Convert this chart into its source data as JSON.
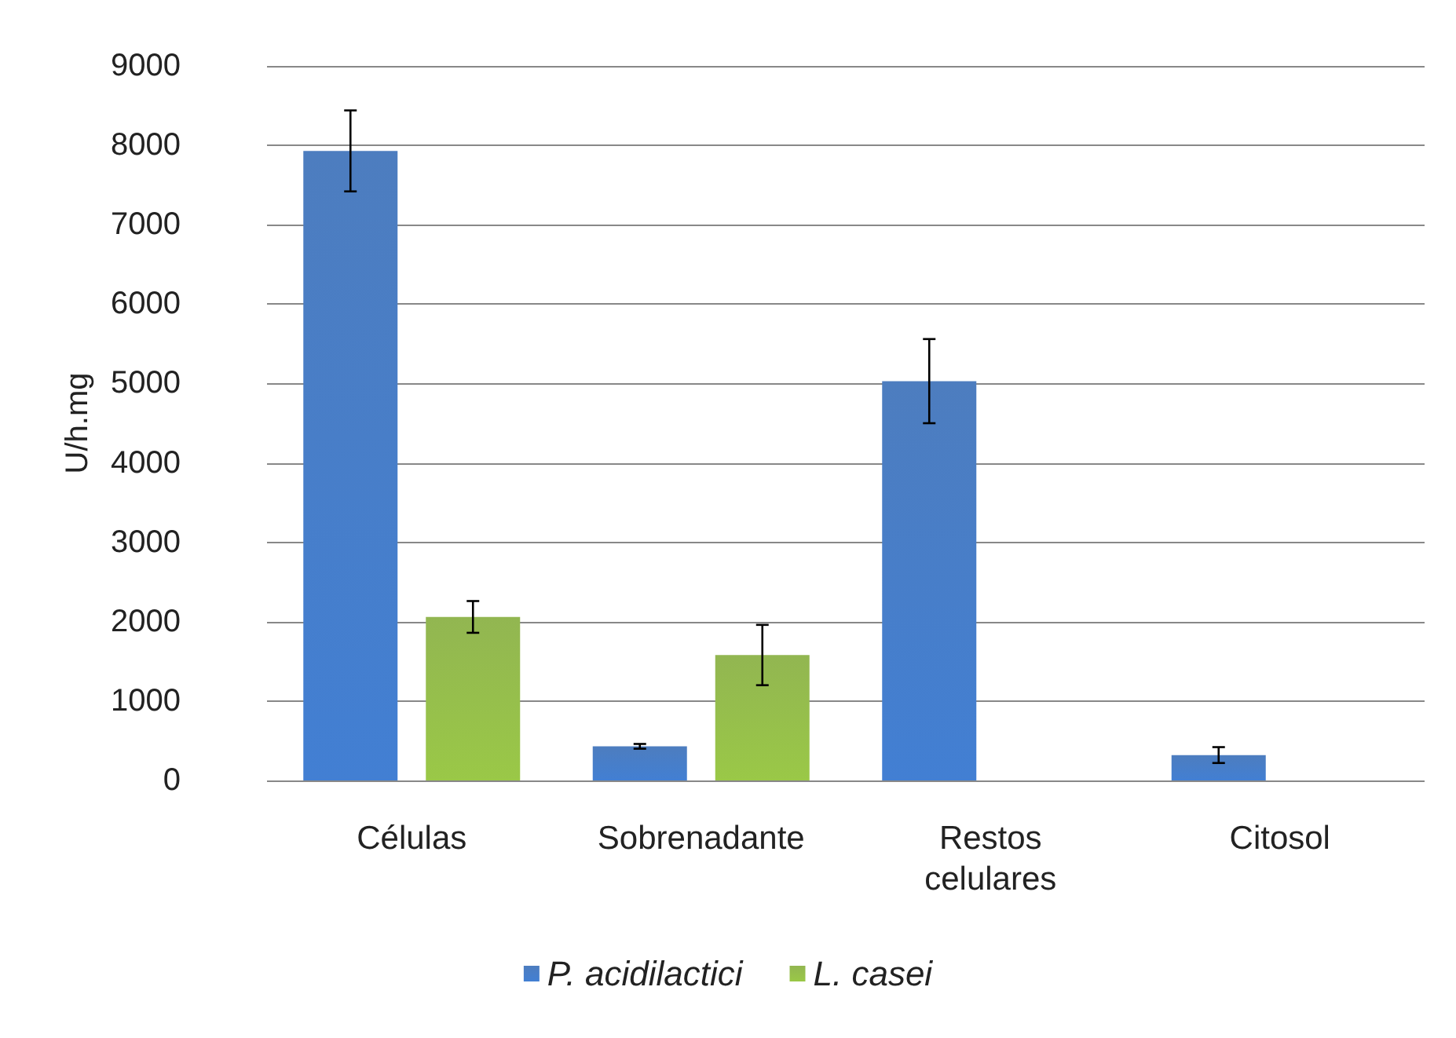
{
  "chart_data": {
    "type": "bar",
    "ylabel": "U/h.mg",
    "categories": [
      "Células",
      "Sobrenadante",
      "Restos\ncelulares",
      "Citosol"
    ],
    "series": [
      {
        "name": "P. acidilactici",
        "color": "#3a6fb8",
        "values": [
          7930,
          430,
          5030,
          320
        ],
        "errors": [
          510,
          30,
          530,
          100
        ]
      },
      {
        "name": "L. casei",
        "color": "#86ae3e",
        "values": [
          2060,
          1580,
          null,
          null
        ],
        "errors": [
          200,
          380,
          null,
          null
        ]
      }
    ],
    "ylim": [
      0,
      9000
    ],
    "yticks": [
      0,
      1000,
      2000,
      3000,
      4000,
      5000,
      6000,
      7000,
      8000,
      9000
    ],
    "grid": "y",
    "legend": "bottom"
  }
}
